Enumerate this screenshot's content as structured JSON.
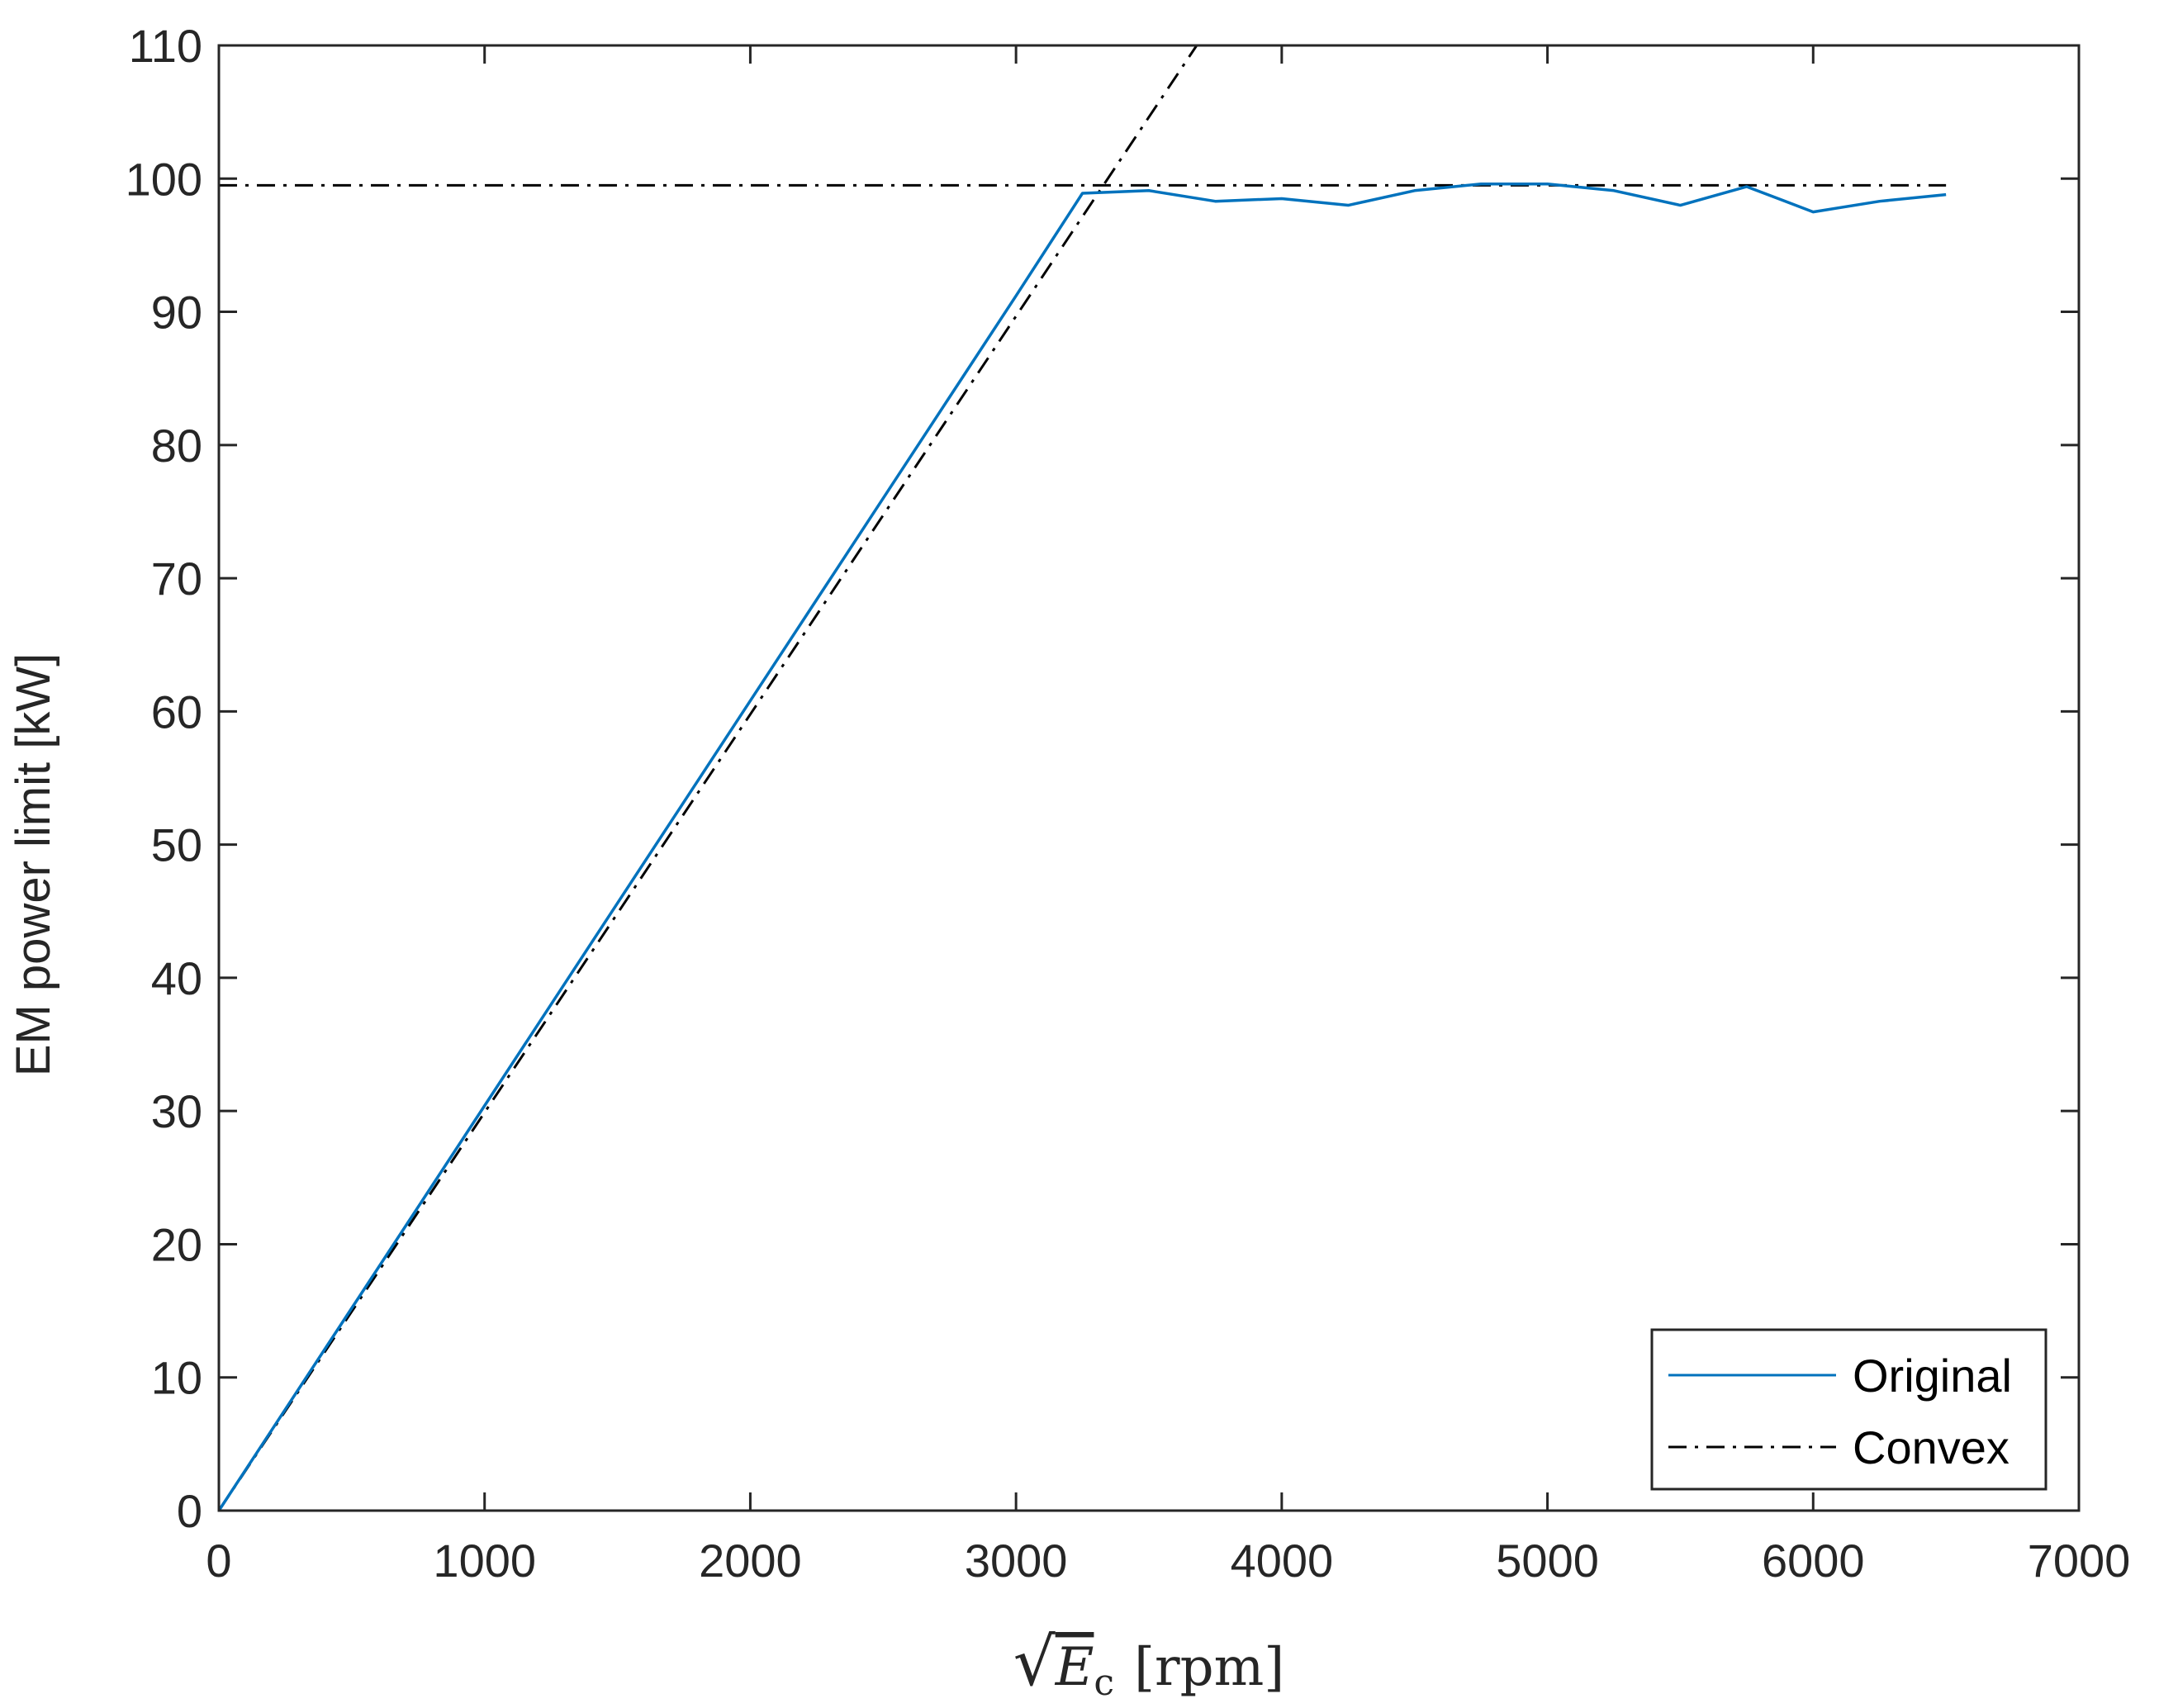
{
  "colors": {
    "original": "#0072BD",
    "convex": "#000000",
    "axes": "#262626"
  },
  "chart_data": {
    "type": "line",
    "xlabel": {
      "radical": "√",
      "variable": "E",
      "subscript": "c",
      "unit": "[rpm]"
    },
    "ylabel": "EM power limit [kW]",
    "xlim": [
      0,
      7000
    ],
    "ylim": [
      0,
      110
    ],
    "xticks": [
      0,
      1000,
      2000,
      3000,
      4000,
      5000,
      6000,
      7000
    ],
    "yticks": [
      0,
      10,
      20,
      30,
      40,
      50,
      60,
      70,
      80,
      90,
      100,
      110
    ],
    "xtick_labels": [
      "0",
      "1000",
      "2000",
      "3000",
      "4000",
      "5000",
      "6000",
      "7000"
    ],
    "ytick_labels": [
      "0",
      "10",
      "20",
      "30",
      "40",
      "50",
      "60",
      "70",
      "80",
      "90",
      "100",
      "110"
    ],
    "grid": false,
    "legend_position": "bottom-right",
    "series": [
      {
        "name": "Original",
        "style": "solid",
        "color": "#0072BD",
        "x": [
          0,
          250,
          500,
          750,
          1000,
          1250,
          1500,
          1750,
          2000,
          2250,
          2500,
          2750,
          3000,
          3250,
          3500,
          3750,
          4000,
          4250,
          4500,
          4750,
          5000,
          5250,
          5500,
          5750,
          6000,
          6250,
          6500
        ],
        "y": [
          0,
          7.6,
          15.2,
          22.8,
          30.4,
          38.0,
          45.6,
          53.2,
          60.8,
          68.4,
          76.0,
          83.6,
          91.2,
          98.9,
          99.1,
          98.3,
          98.5,
          98.0,
          99.1,
          99.6,
          99.6,
          99.1,
          98.0,
          99.4,
          97.5,
          98.3,
          98.8
        ]
      },
      {
        "name": "Convex",
        "style": "dashdot",
        "color": "#000000",
        "segments": [
          {
            "x": [
              0,
              3680
            ],
            "y": [
              0,
              110
            ]
          },
          {
            "x": [
              0,
              6500
            ],
            "y": [
              99.5,
              99.5
            ]
          }
        ]
      }
    ]
  }
}
